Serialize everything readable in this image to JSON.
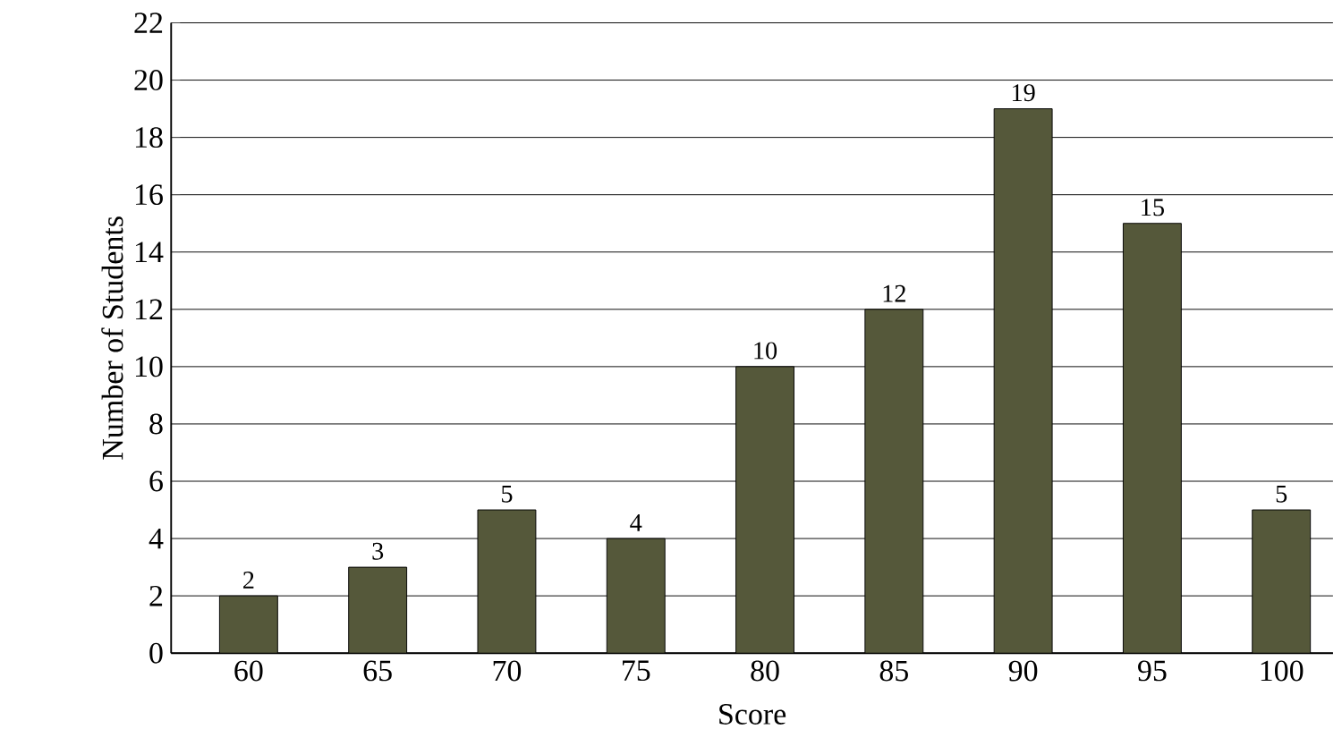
{
  "chart_data": {
    "type": "bar",
    "xlabel": "Score",
    "ylabel": "Number of Students",
    "categories": [
      "60",
      "65",
      "70",
      "75",
      "80",
      "85",
      "90",
      "95",
      "100"
    ],
    "values": [
      2,
      3,
      5,
      4,
      10,
      12,
      19,
      15,
      5
    ],
    "color": "#55583a",
    "ylim": [
      0,
      22
    ],
    "yticks": [
      0,
      2,
      4,
      6,
      8,
      10,
      12,
      14,
      16,
      18,
      20,
      22
    ],
    "grid": "y",
    "data_labels": true
  }
}
